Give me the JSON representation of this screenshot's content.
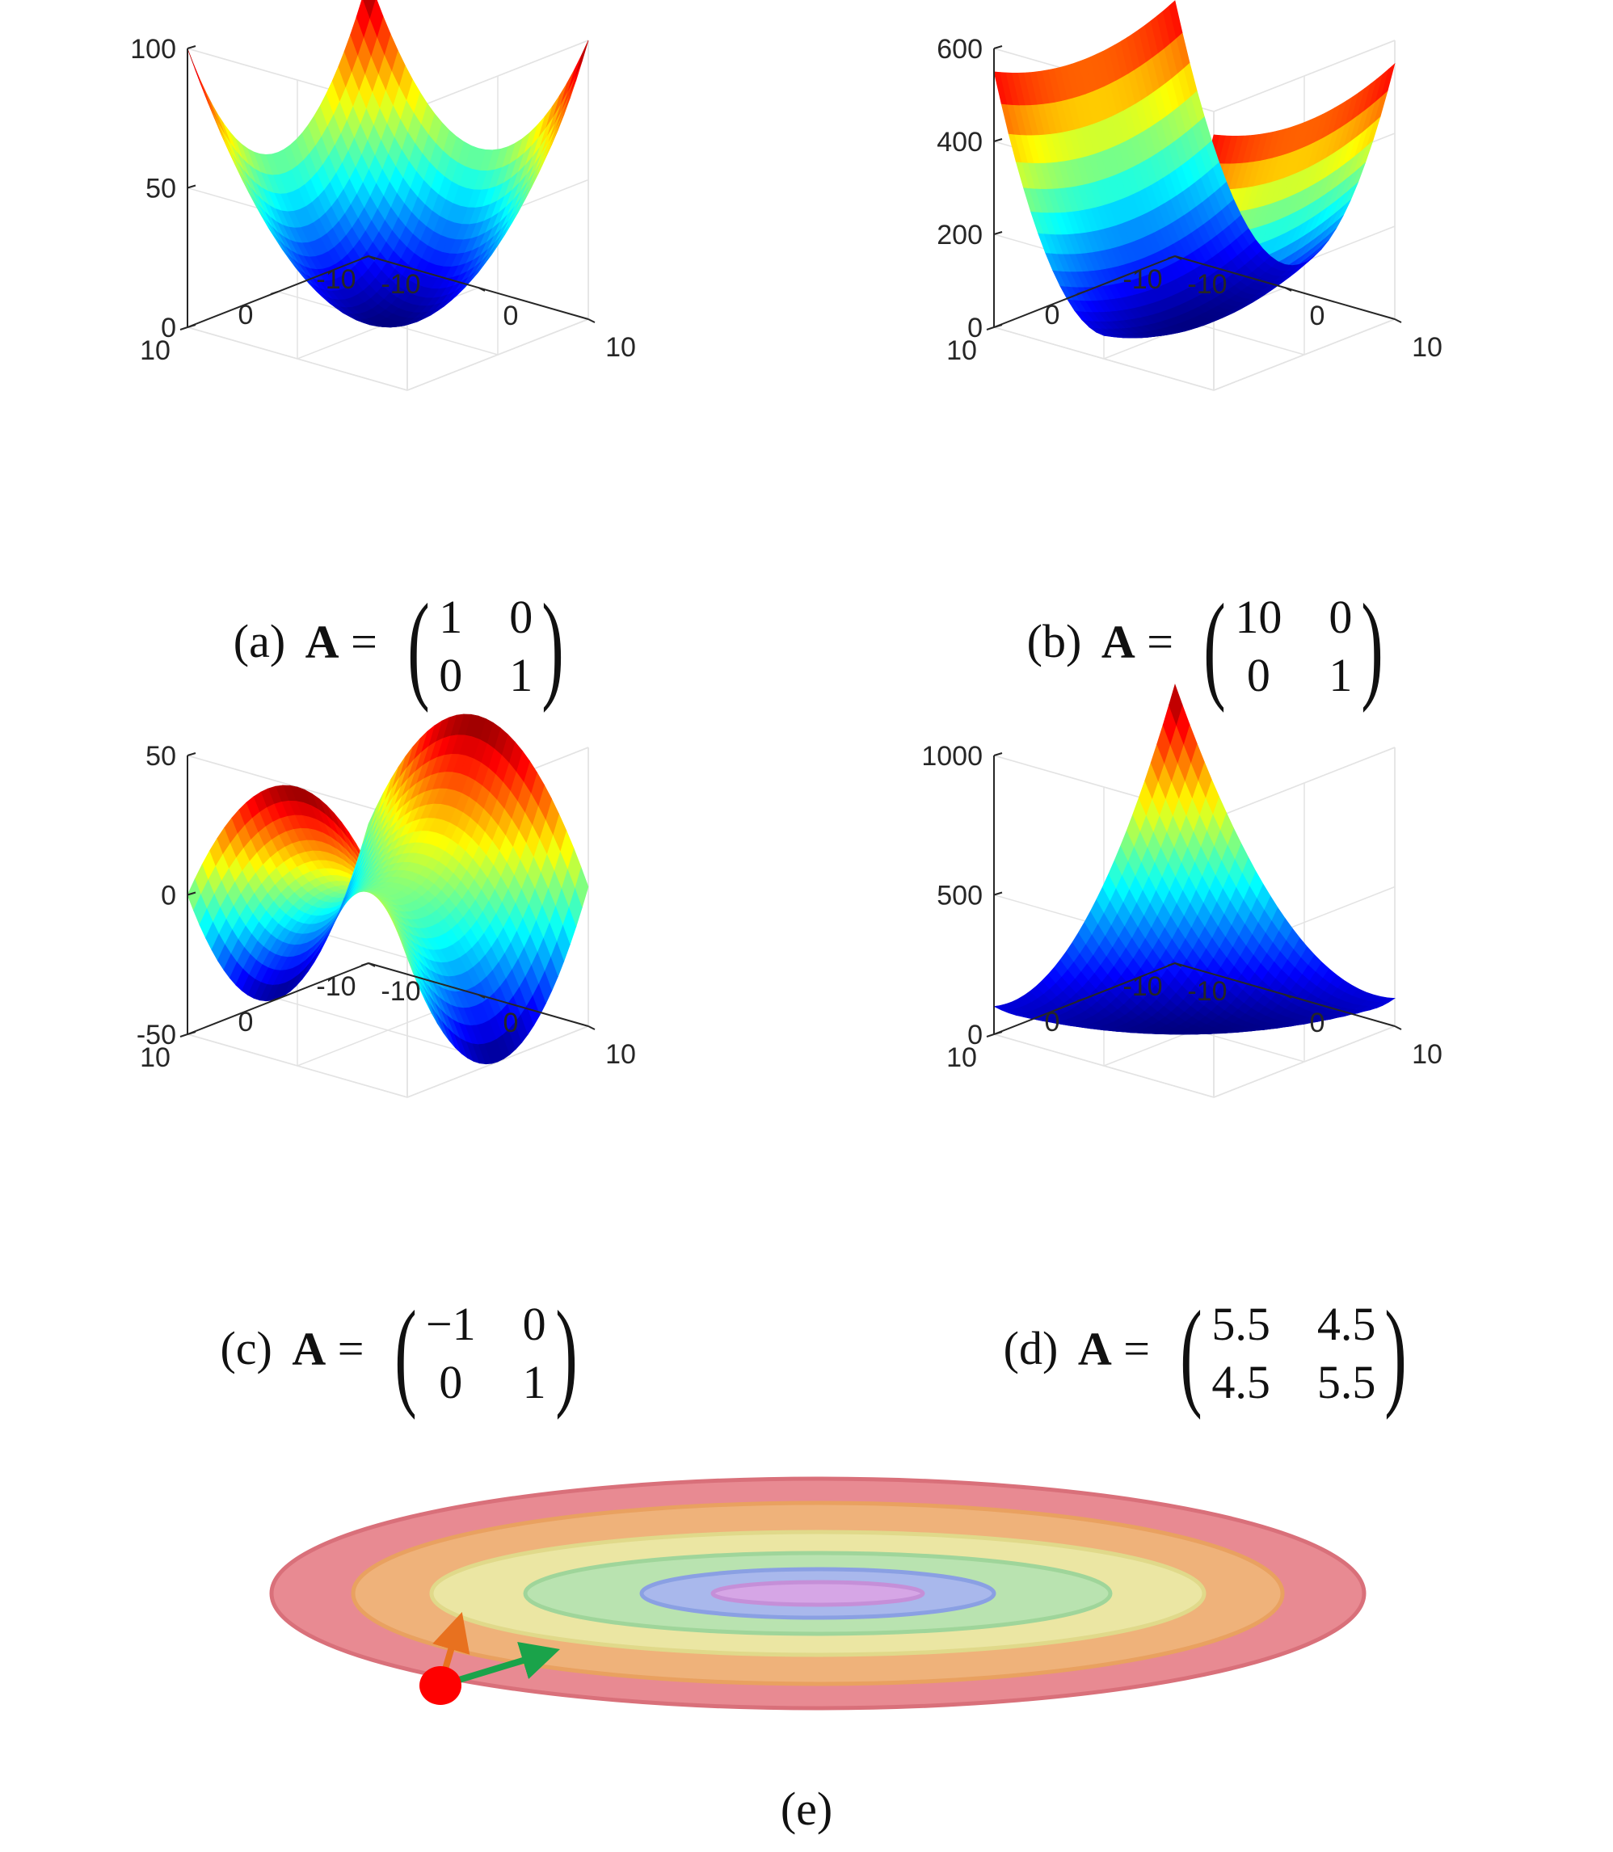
{
  "panels": [
    {
      "id": "a",
      "caption_label": "(a)",
      "matrix_symbol": "A",
      "equals": "=",
      "matrix": [
        [
          "1",
          "0"
        ],
        [
          "0",
          "1"
        ]
      ],
      "z_ticks": [
        "100",
        "50",
        "0"
      ],
      "y_ticks": [
        "10",
        "0",
        "-10"
      ],
      "x_ticks": [
        "-10",
        "0",
        "10"
      ],
      "chart_data": {
        "type": "surface",
        "function": "f(x,y) = 0.5 * [x y] A [x y]^T",
        "A": [
          [
            1,
            0
          ],
          [
            0,
            1
          ]
        ],
        "x_range": [
          -10,
          10
        ],
        "y_range": [
          -10,
          10
        ],
        "zlim": [
          0,
          100
        ],
        "colormap": "jet"
      }
    },
    {
      "id": "b",
      "caption_label": "(b)",
      "matrix_symbol": "A",
      "equals": "=",
      "matrix": [
        [
          "10",
          "0"
        ],
        [
          "0",
          "1"
        ]
      ],
      "z_ticks": [
        "600",
        "400",
        "200",
        "0"
      ],
      "y_ticks": [
        "10",
        "0",
        "-10"
      ],
      "x_ticks": [
        "-10",
        "0",
        "10"
      ],
      "chart_data": {
        "type": "surface",
        "function": "f(x,y) = 0.5 * [x y] A [x y]^T",
        "A": [
          [
            10,
            0
          ],
          [
            0,
            1
          ]
        ],
        "x_range": [
          -10,
          10
        ],
        "y_range": [
          -10,
          10
        ],
        "zlim": [
          0,
          600
        ],
        "colormap": "jet"
      }
    },
    {
      "id": "c",
      "caption_label": "(c)",
      "matrix_symbol": "A",
      "equals": "=",
      "matrix": [
        [
          "−1",
          "0"
        ],
        [
          "0",
          "1"
        ]
      ],
      "z_ticks": [
        "50",
        "0",
        "-50"
      ],
      "y_ticks": [
        "10",
        "0",
        "-10"
      ],
      "x_ticks": [
        "-10",
        "0",
        "10"
      ],
      "chart_data": {
        "type": "surface",
        "function": "f(x,y) = 0.5 * [x y] A [x y]^T",
        "A": [
          [
            -1,
            0
          ],
          [
            0,
            1
          ]
        ],
        "x_range": [
          -10,
          10
        ],
        "y_range": [
          -10,
          10
        ],
        "zlim": [
          -50,
          50
        ],
        "colormap": "jet"
      }
    },
    {
      "id": "d",
      "caption_label": "(d)",
      "matrix_symbol": "A",
      "equals": "=",
      "matrix": [
        [
          "5.5",
          "4.5"
        ],
        [
          "4.5",
          "5.5"
        ]
      ],
      "z_ticks": [
        "1000",
        "500",
        "0"
      ],
      "y_ticks": [
        "10",
        "0",
        "-10"
      ],
      "x_ticks": [
        "-10",
        "0",
        "10"
      ],
      "chart_data": {
        "type": "surface",
        "function": "f(x,y) = 0.5 * [x y] A [x y]^T",
        "A": [
          [
            5.5,
            4.5
          ],
          [
            4.5,
            5.5
          ]
        ],
        "x_range": [
          -10,
          10
        ],
        "y_range": [
          -10,
          10
        ],
        "zlim": [
          0,
          1000
        ],
        "colormap": "jet"
      }
    }
  ],
  "panel_e": {
    "caption_label": "(e)",
    "ellipse_colors": [
      "#e88a92",
      "#efb27a",
      "#ebe6a3",
      "#b9e3b0",
      "#a9b8ec",
      "#d6a6e6"
    ],
    "ellipse_stroke_colors": [
      "#d9707a",
      "#e9a160",
      "#e0d98a",
      "#9fd59a",
      "#8aa0e3",
      "#c58fd8"
    ],
    "point_color": "#ff0000",
    "arrow_colors": [
      "#e8711f",
      "#1aa34a"
    ]
  }
}
